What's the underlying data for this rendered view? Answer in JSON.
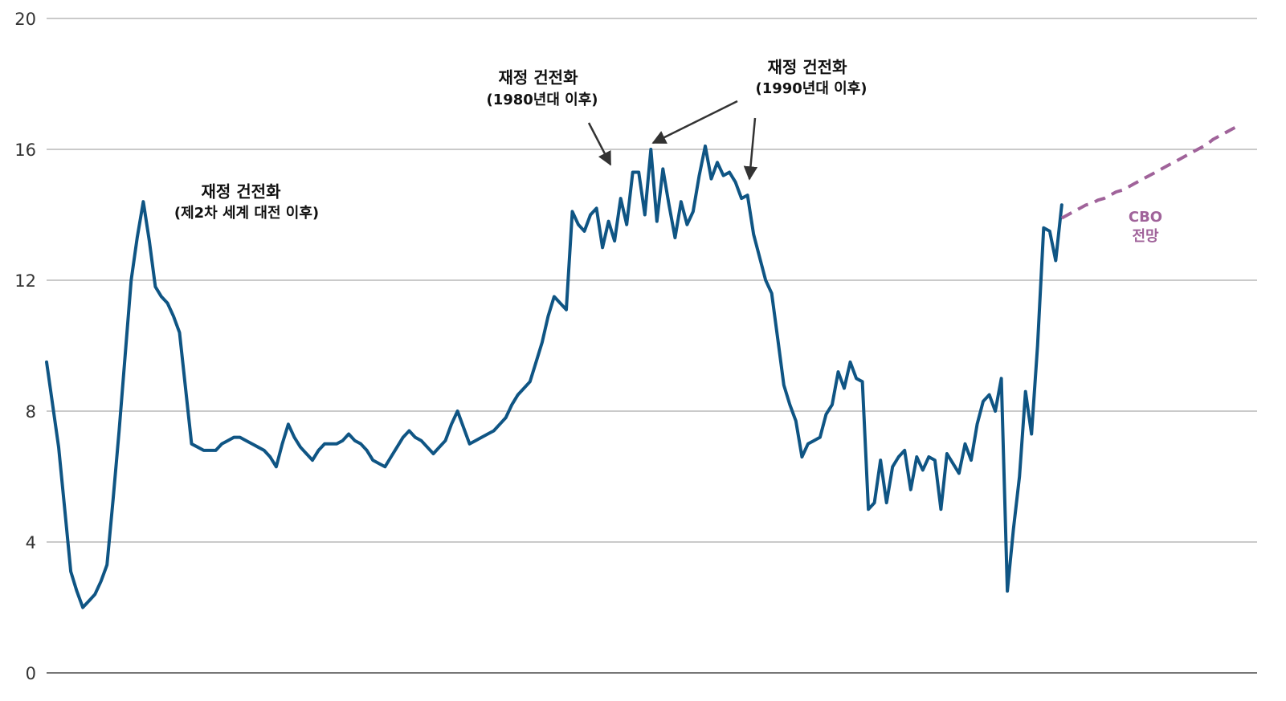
{
  "chart_data": {
    "type": "line",
    "ylim": [
      0,
      20
    ],
    "yticks": [
      0,
      4,
      8,
      12,
      16,
      20
    ],
    "grid": true,
    "categories": [
      null,
      null,
      null,
      null,
      null,
      null,
      null,
      null,
      null,
      null,
      null,
      null,
      null,
      null,
      null,
      null,
      null,
      null,
      null,
      null,
      null,
      null,
      null,
      null,
      null,
      null,
      null,
      null,
      null,
      null,
      null,
      null,
      null,
      null,
      null,
      null,
      null,
      null,
      null,
      null,
      null,
      null,
      null,
      null,
      null,
      null,
      null,
      null,
      null,
      null,
      null,
      null,
      null,
      null,
      null,
      null,
      null,
      null,
      null,
      null,
      null,
      null,
      null,
      null,
      null,
      null,
      null,
      null,
      null,
      null,
      null,
      null,
      null,
      null,
      null,
      null,
      null,
      null,
      null,
      null,
      null,
      null,
      null,
      null,
      null,
      null,
      null,
      null,
      null,
      null,
      null,
      null,
      null,
      null,
      null,
      null,
      null,
      null,
      null,
      null,
      null,
      null,
      null,
      null,
      null,
      null,
      null,
      null,
      null,
      null,
      null,
      null,
      null,
      null,
      null,
      null,
      null,
      null,
      null,
      null,
      null,
      null,
      null,
      null,
      null,
      null,
      null,
      null,
      null,
      null,
      null,
      null,
      null,
      null,
      null,
      null,
      null,
      null,
      null,
      null,
      null,
      null,
      null,
      null,
      null,
      null,
      null,
      null,
      null,
      null,
      null,
      null,
      null,
      null,
      null,
      null,
      null,
      null,
      null,
      null,
      null,
      null,
      null,
      null,
      null,
      null,
      null,
      null,
      null,
      null,
      null,
      null,
      null,
      null,
      null,
      null,
      null,
      null,
      null,
      null,
      null,
      null,
      null,
      null,
      null,
      null,
      null,
      null,
      null,
      null,
      null,
      null,
      null,
      null,
      null,
      null,
      null,
      null
    ],
    "series": [
      {
        "color": "#0f5584",
        "line_style": "solid",
        "values": [
          9.5,
          8.2,
          6.9,
          5.0,
          3.1,
          2.5,
          2.0,
          2.2,
          2.4,
          2.8,
          3.3,
          5.3,
          7.4,
          9.7,
          12.0,
          13.3,
          14.4,
          13.2,
          11.8,
          11.5,
          11.3,
          10.9,
          10.4,
          8.7,
          7.0,
          6.9,
          6.8,
          6.8,
          6.8,
          7.0,
          7.1,
          7.2,
          7.2,
          7.1,
          7.0,
          6.9,
          6.8,
          6.6,
          6.3,
          7.0,
          7.6,
          7.2,
          6.9,
          6.7,
          6.5,
          6.8,
          7.0,
          7.0,
          7.0,
          7.1,
          7.3,
          7.1,
          7.0,
          6.8,
          6.5,
          6.4,
          6.3,
          6.6,
          6.9,
          7.2,
          7.4,
          7.2,
          7.1,
          6.9,
          6.7,
          6.9,
          7.1,
          7.6,
          8.0,
          7.5,
          7.0,
          7.1,
          7.2,
          7.3,
          7.4,
          7.6,
          7.8,
          8.2,
          8.5,
          8.7,
          8.9,
          9.5,
          10.1,
          10.9,
          11.5,
          11.3,
          11.1,
          14.1,
          13.7,
          13.5,
          14.0,
          14.2,
          13.0,
          13.8,
          13.2,
          14.5,
          13.7,
          15.3,
          15.3,
          14.0,
          16.0,
          13.8,
          15.4,
          14.3,
          13.3,
          14.4,
          13.7,
          14.1,
          15.2,
          16.1,
          15.1,
          15.6,
          15.2,
          15.3,
          15.0,
          14.5,
          14.6,
          13.4,
          12.7,
          12.0,
          11.6,
          10.2,
          8.8,
          8.2,
          7.7,
          6.6,
          7.0,
          7.1,
          7.2,
          7.9,
          8.2,
          9.2,
          8.7,
          9.5,
          9.0,
          8.9,
          5.0,
          5.2,
          6.5,
          5.2,
          6.3,
          6.6,
          6.8,
          5.6,
          6.6,
          6.2,
          6.6,
          6.5,
          5.0,
          6.7,
          6.4,
          6.1,
          7.0,
          6.5,
          7.6,
          8.3,
          8.5,
          8.0,
          9.0,
          2.5,
          4.4,
          6.0,
          8.6,
          7.3,
          10.0,
          13.6,
          13.5,
          12.6,
          14.3,
          null,
          null,
          null,
          null,
          null,
          null,
          null,
          null,
          null,
          null,
          null,
          null,
          null,
          null,
          null,
          null,
          null,
          null,
          null,
          null,
          null,
          null,
          null,
          null,
          null,
          null,
          null,
          null,
          null
        ]
      },
      {
        "color": "#a0639a",
        "line_style": "dashed",
        "values": [
          null,
          null,
          null,
          null,
          null,
          null,
          null,
          null,
          null,
          null,
          null,
          null,
          null,
          null,
          null,
          null,
          null,
          null,
          null,
          null,
          null,
          null,
          null,
          null,
          null,
          null,
          null,
          null,
          null,
          null,
          null,
          null,
          null,
          null,
          null,
          null,
          null,
          null,
          null,
          null,
          null,
          null,
          null,
          null,
          null,
          null,
          null,
          null,
          null,
          null,
          null,
          null,
          null,
          null,
          null,
          null,
          null,
          null,
          null,
          null,
          null,
          null,
          null,
          null,
          null,
          null,
          null,
          null,
          null,
          null,
          null,
          null,
          null,
          null,
          null,
          null,
          null,
          null,
          null,
          null,
          null,
          null,
          null,
          null,
          null,
          null,
          null,
          null,
          null,
          null,
          null,
          null,
          null,
          null,
          null,
          null,
          null,
          null,
          null,
          null,
          null,
          null,
          null,
          null,
          null,
          null,
          null,
          null,
          null,
          null,
          null,
          null,
          null,
          null,
          null,
          null,
          null,
          null,
          null,
          null,
          null,
          null,
          null,
          null,
          null,
          null,
          null,
          null,
          null,
          null,
          null,
          null,
          null,
          null,
          null,
          null,
          null,
          null,
          null,
          null,
          null,
          null,
          null,
          null,
          null,
          null,
          null,
          null,
          null,
          null,
          null,
          null,
          null,
          null,
          null,
          null,
          null,
          null,
          null,
          null,
          null,
          null,
          null,
          null,
          null,
          null,
          null,
          null,
          13.9,
          14.0,
          14.1,
          14.2,
          14.3,
          14.35,
          14.45,
          14.5,
          14.6,
          14.7,
          14.75,
          14.85,
          14.95,
          15.05,
          15.15,
          15.25,
          15.35,
          15.45,
          15.55,
          15.65,
          15.75,
          15.85,
          15.95,
          16.05,
          16.15,
          16.3,
          16.4,
          16.5,
          16.6,
          16.7
        ]
      }
    ],
    "annotations": [
      {
        "lines": [
          "재정 건전화",
          "(제2차 세계 대전 이후)"
        ]
      },
      {
        "lines": [
          "재정 건전화",
          "(1980년대 이후)"
        ]
      },
      {
        "lines": [
          "재정 건전화",
          "(1990년대 이후)"
        ]
      },
      {
        "lines": [
          "CBO",
          "전망"
        ]
      }
    ]
  }
}
